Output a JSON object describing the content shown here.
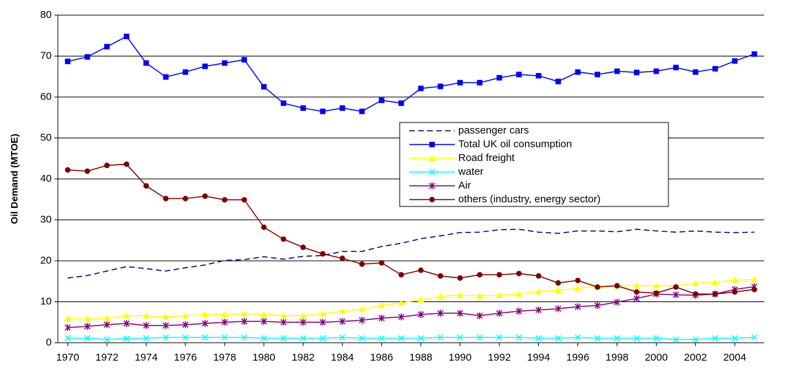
{
  "chart_data": {
    "type": "line",
    "y_label": "Oil Demand (MTOE)",
    "x": [
      1970,
      1971,
      1972,
      1973,
      1974,
      1975,
      1976,
      1977,
      1978,
      1979,
      1980,
      1981,
      1982,
      1983,
      1984,
      1985,
      1986,
      1987,
      1988,
      1989,
      1990,
      1991,
      1992,
      1993,
      1994,
      1995,
      1996,
      1997,
      1998,
      1999,
      2000,
      2001,
      2002,
      2003,
      2004,
      2005
    ],
    "xlim": [
      1969.5,
      2005.5
    ],
    "xticks": [
      1970,
      1972,
      1974,
      1976,
      1978,
      1980,
      1982,
      1984,
      1986,
      1988,
      1990,
      1992,
      1994,
      1996,
      1998,
      2000,
      2002,
      2004
    ],
    "ylim": [
      0,
      80
    ],
    "yticks": [
      0,
      10,
      20,
      30,
      40,
      50,
      60,
      70,
      80
    ],
    "grid": true,
    "legend": "center-right",
    "series": [
      {
        "name": "passenger cars",
        "color": "#000080",
        "marker": "none",
        "dash": true,
        "values": [
          15.8,
          16.4,
          17.5,
          18.6,
          18.1,
          17.5,
          18.3,
          19.0,
          20.1,
          20.3,
          21.0,
          20.4,
          21.1,
          21.3,
          22.3,
          22.3,
          23.5,
          24.3,
          25.4,
          26.1,
          26.9,
          27.0,
          27.6,
          27.7,
          27.0,
          26.7,
          27.3,
          27.3,
          27.1,
          27.7,
          27.3,
          27.0,
          27.3,
          27.0,
          26.9,
          27.0
        ]
      },
      {
        "name": "Total UK oil consumption",
        "color": "#0000ff",
        "marker": "square",
        "dash": false,
        "values": [
          68.7,
          69.8,
          72.3,
          74.8,
          68.3,
          64.9,
          66.1,
          67.5,
          68.3,
          69.1,
          62.5,
          58.5,
          57.3,
          56.5,
          57.3,
          56.5,
          59.2,
          58.5,
          62.1,
          62.6,
          63.5,
          63.5,
          64.7,
          65.5,
          65.2,
          63.8,
          66.1,
          65.5,
          66.3,
          66.0,
          66.3,
          67.2,
          66.1,
          66.9,
          68.8,
          70.5
        ]
      },
      {
        "name": "Road freight",
        "color": "#ffff00",
        "marker": "triangle",
        "dash": false,
        "values": [
          5.9,
          5.8,
          6.0,
          6.6,
          6.6,
          6.3,
          6.6,
          6.9,
          6.9,
          7.1,
          6.9,
          6.6,
          6.6,
          7.1,
          7.7,
          8.2,
          9.1,
          9.7,
          10.5,
          11.3,
          11.6,
          11.4,
          11.6,
          11.9,
          12.5,
          12.8,
          13.3,
          13.8,
          13.9,
          13.9,
          13.9,
          13.9,
          14.5,
          14.7,
          15.3,
          15.4
        ]
      },
      {
        "name": "water",
        "color": "#00ffff",
        "marker": "x",
        "dash": false,
        "values": [
          1.1,
          1.1,
          0.8,
          1.0,
          1.1,
          1.3,
          1.3,
          1.3,
          1.3,
          1.3,
          1.1,
          1.1,
          1.1,
          1.1,
          1.3,
          1.1,
          1.1,
          1.1,
          1.1,
          1.3,
          1.3,
          1.3,
          1.3,
          1.3,
          1.1,
          1.1,
          1.3,
          1.1,
          1.1,
          1.1,
          1.1,
          0.8,
          0.8,
          1.1,
          1.1,
          1.3
        ]
      },
      {
        "name": "Air",
        "color": "#800080",
        "marker": "asterisk",
        "dash": false,
        "values": [
          3.7,
          4.0,
          4.4,
          4.7,
          4.2,
          4.2,
          4.4,
          4.7,
          5.0,
          5.2,
          5.2,
          5.0,
          5.0,
          5.0,
          5.2,
          5.5,
          6.0,
          6.3,
          6.9,
          7.2,
          7.2,
          6.6,
          7.2,
          7.7,
          8.0,
          8.3,
          8.8,
          9.1,
          9.9,
          10.8,
          11.9,
          11.7,
          11.6,
          11.9,
          13.0,
          13.7
        ]
      },
      {
        "name": "others (industry, energy sector)",
        "color": "#800000",
        "marker": "circle",
        "dash": false,
        "values": [
          42.2,
          41.9,
          43.3,
          43.6,
          38.3,
          35.2,
          35.2,
          35.8,
          34.9,
          34.9,
          28.2,
          25.3,
          23.3,
          21.7,
          20.6,
          19.2,
          19.5,
          16.6,
          17.7,
          16.3,
          15.8,
          16.6,
          16.6,
          16.9,
          16.3,
          14.6,
          15.2,
          13.6,
          13.9,
          12.4,
          12.1,
          13.6,
          11.9,
          11.9,
          12.4,
          13.0
        ]
      }
    ]
  }
}
